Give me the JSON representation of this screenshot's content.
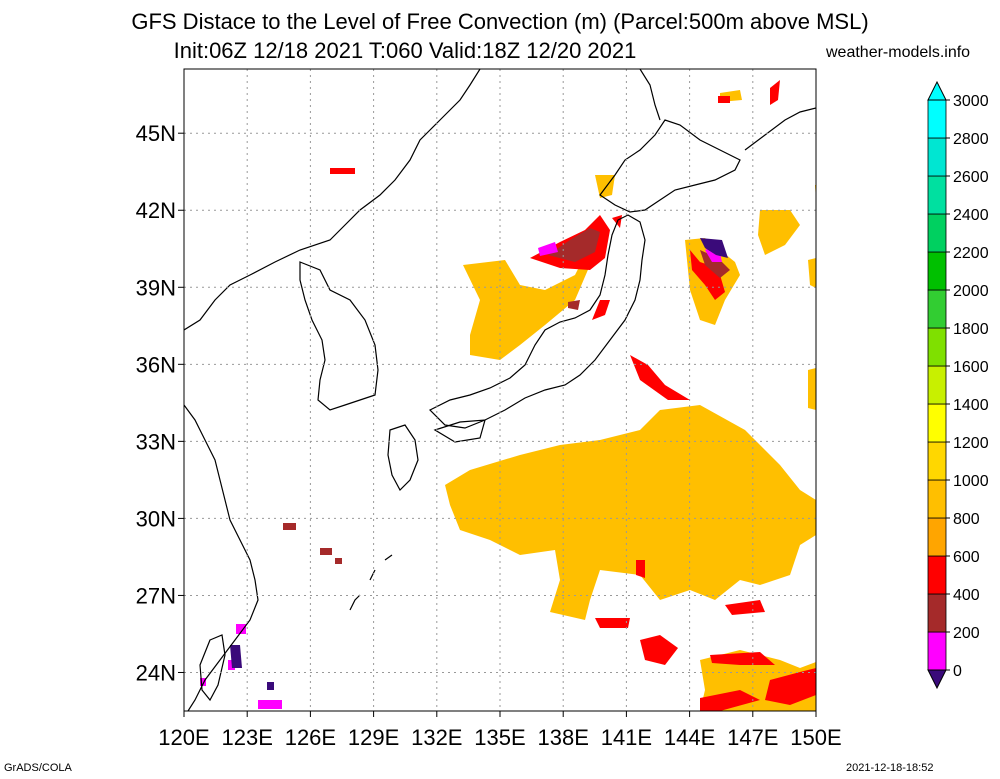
{
  "title_line1": "GFS Distace to the Level of Free Convection (m) (Parcel:500m above MSL)",
  "title_line2": "Init:06Z 12/18 2021 T:060 Valid:18Z 12/20 2021",
  "credit": "weather-models.info",
  "footer_left": "GrADS/COLA",
  "footer_right": "2021-12-18-18:52",
  "map": {
    "lon_range": [
      120,
      150
    ],
    "lat_range": [
      22.5,
      47.5
    ],
    "lat_labels": [
      "45N",
      "42N",
      "39N",
      "36N",
      "33N",
      "30N",
      "27N",
      "24N"
    ],
    "lat_values": [
      45,
      42,
      39,
      36,
      33,
      30,
      27,
      24
    ],
    "lon_labels": [
      "120E",
      "123E",
      "126E",
      "129E",
      "132E",
      "135E",
      "138E",
      "141E",
      "144E",
      "147E",
      "150E"
    ],
    "lon_values": [
      120,
      123,
      126,
      129,
      132,
      135,
      138,
      141,
      144,
      147,
      150
    ],
    "grid": "dotted"
  },
  "colorbar": {
    "labels": [
      "0",
      "200",
      "400",
      "600",
      "800",
      "1000",
      "1200",
      "1400",
      "1600",
      "1800",
      "2000",
      "2200",
      "2400",
      "2600",
      "2800",
      "3000"
    ],
    "colors": [
      "#3a0a7a",
      "#ff00ff",
      "#a52a2a",
      "#ff0000",
      "#ffa500",
      "#ffbf00",
      "#ffd700",
      "#ffff00",
      "#c8f000",
      "#7fe000",
      "#32cd32",
      "#00c000",
      "#00d060",
      "#00e0a0",
      "#00e6d2",
      "#00ffff"
    ],
    "under_color": "#3a0a7a",
    "over_color": "#00ffff"
  },
  "fields": {
    "yellow": "#ffbf00",
    "orange": "#ffa500",
    "red": "#ff0000",
    "brown": "#a52a2a",
    "magenta": "#ff00ff",
    "purple": "#3a0a7a"
  }
}
